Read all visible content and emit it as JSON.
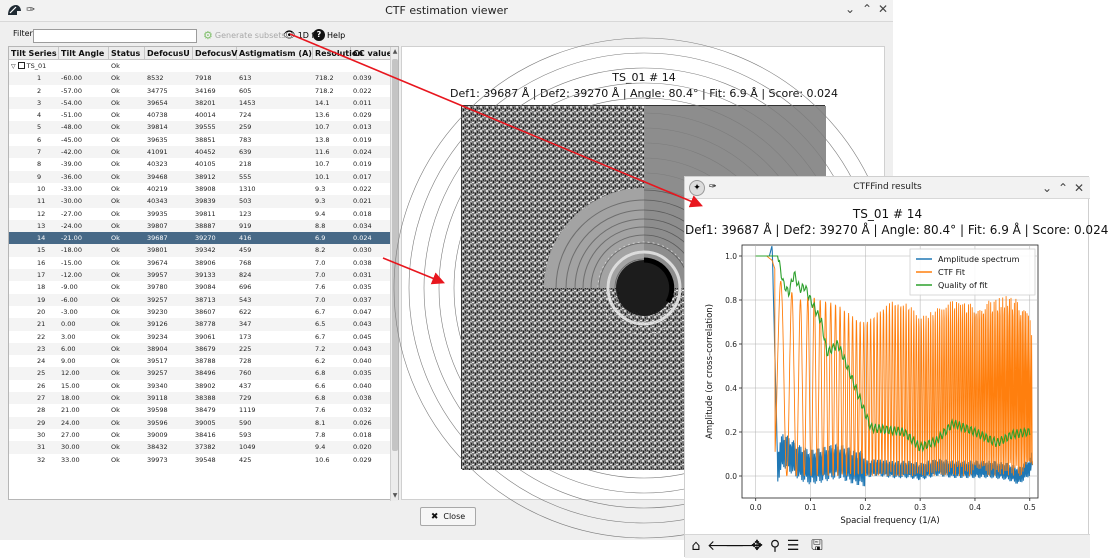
{
  "main_window": {
    "title": "CTF estimation viewer",
    "toolbar": {
      "filter_label": "Filter",
      "filter_value": "",
      "generate_subsets_label": "Generate subsets",
      "fit_1d_label": "1D fit",
      "help_label": "Help"
    },
    "table": {
      "columns": [
        "Tilt Series",
        "Tilt Angle",
        "Status",
        "DefocusU",
        "DefocusV",
        "Astigmatism (A)",
        "Resolution",
        "CC value"
      ],
      "group_label": "TS_01",
      "group_status": "Ok",
      "rows": [
        [
          "1",
          "-60.00",
          "Ok",
          "8532",
          "7918",
          "613",
          "718.2",
          "0.039"
        ],
        [
          "2",
          "-57.00",
          "Ok",
          "34775",
          "34169",
          "605",
          "718.2",
          "0.022"
        ],
        [
          "3",
          "-54.00",
          "Ok",
          "39654",
          "38201",
          "1453",
          "14.1",
          "0.011"
        ],
        [
          "4",
          "-51.00",
          "Ok",
          "40738",
          "40014",
          "724",
          "13.6",
          "0.029"
        ],
        [
          "5",
          "-48.00",
          "Ok",
          "39814",
          "39555",
          "259",
          "10.7",
          "0.013"
        ],
        [
          "6",
          "-45.00",
          "Ok",
          "39635",
          "38851",
          "783",
          "13.8",
          "0.019"
        ],
        [
          "7",
          "-42.00",
          "Ok",
          "41091",
          "40452",
          "639",
          "11.6",
          "0.024"
        ],
        [
          "8",
          "-39.00",
          "Ok",
          "40323",
          "40105",
          "218",
          "10.7",
          "0.019"
        ],
        [
          "9",
          "-36.00",
          "Ok",
          "39468",
          "38912",
          "555",
          "10.1",
          "0.017"
        ],
        [
          "10",
          "-33.00",
          "Ok",
          "40219",
          "38908",
          "1310",
          "9.3",
          "0.022"
        ],
        [
          "11",
          "-30.00",
          "Ok",
          "40343",
          "39839",
          "503",
          "9.3",
          "0.021"
        ],
        [
          "12",
          "-27.00",
          "Ok",
          "39935",
          "39811",
          "123",
          "9.4",
          "0.018"
        ],
        [
          "13",
          "-24.00",
          "Ok",
          "39807",
          "38887",
          "919",
          "8.8",
          "0.034"
        ],
        [
          "14",
          "-21.00",
          "Ok",
          "39687",
          "39270",
          "416",
          "6.9",
          "0.024"
        ],
        [
          "15",
          "-18.00",
          "Ok",
          "39801",
          "39342",
          "459",
          "8.2",
          "0.030"
        ],
        [
          "16",
          "-15.00",
          "Ok",
          "39674",
          "38906",
          "768",
          "7.0",
          "0.038"
        ],
        [
          "17",
          "-12.00",
          "Ok",
          "39957",
          "39133",
          "824",
          "7.0",
          "0.031"
        ],
        [
          "18",
          "-9.00",
          "Ok",
          "39780",
          "39084",
          "696",
          "7.6",
          "0.035"
        ],
        [
          "19",
          "-6.00",
          "Ok",
          "39257",
          "38713",
          "543",
          "7.0",
          "0.037"
        ],
        [
          "20",
          "-3.00",
          "Ok",
          "39230",
          "38607",
          "622",
          "6.7",
          "0.047"
        ],
        [
          "21",
          "0.00",
          "Ok",
          "39126",
          "38778",
          "347",
          "6.5",
          "0.043"
        ],
        [
          "22",
          "3.00",
          "Ok",
          "39234",
          "39061",
          "173",
          "6.7",
          "0.045"
        ],
        [
          "23",
          "6.00",
          "Ok",
          "38904",
          "38679",
          "225",
          "7.2",
          "0.043"
        ],
        [
          "24",
          "9.00",
          "Ok",
          "39517",
          "38788",
          "728",
          "6.2",
          "0.040"
        ],
        [
          "25",
          "12.00",
          "Ok",
          "39257",
          "38496",
          "760",
          "6.8",
          "0.035"
        ],
        [
          "26",
          "15.00",
          "Ok",
          "39340",
          "38902",
          "437",
          "6.6",
          "0.040"
        ],
        [
          "27",
          "18.00",
          "Ok",
          "39118",
          "38388",
          "729",
          "6.8",
          "0.038"
        ],
        [
          "28",
          "21.00",
          "Ok",
          "39598",
          "38479",
          "1119",
          "7.6",
          "0.032"
        ],
        [
          "29",
          "24.00",
          "Ok",
          "39596",
          "39005",
          "590",
          "8.1",
          "0.026"
        ],
        [
          "30",
          "27.00",
          "Ok",
          "39009",
          "38416",
          "593",
          "7.8",
          "0.018"
        ],
        [
          "31",
          "30.00",
          "Ok",
          "38432",
          "37382",
          "1049",
          "9.4",
          "0.020"
        ],
        [
          "32",
          "33.00",
          "Ok",
          "39973",
          "39548",
          "425",
          "10.6",
          "0.029"
        ]
      ],
      "selected_index": 13
    },
    "display": {
      "title_line1": "TS_01 # 14",
      "title_line2": "Def1: 39687 Å | Def2: 39270 Å | Angle: 80.4° | Fit: 6.9 Å | Score: 0.024"
    },
    "close_label": "Close"
  },
  "ctffind_window": {
    "title": "CTFFind results",
    "plot_title_line1": "TS_01 # 14",
    "plot_title_line2": "Def1: 39687 Å | Def2: 39270 Å | Angle: 80.4° | Fit: 6.9 Å | Score: 0.024",
    "toolbar_icons": [
      "home-icon",
      "back-icon",
      "forward-icon",
      "pan-icon",
      "zoom-icon",
      "configure-icon",
      "save-icon"
    ]
  },
  "chart_data": {
    "type": "line",
    "title": "TS_01 # 14",
    "subtitle": "Def1: 39687 Å | Def2: 39270 Å | Angle: 80.4° | Fit: 6.9 Å | Score: 0.024",
    "xlabel": "Spacial frequency (1/A)",
    "ylabel": "Amplitude (or cross-correlation)",
    "xlim": [
      -0.025,
      0.515
    ],
    "ylim": [
      -0.1,
      1.05
    ],
    "xticks": [
      "0.0",
      "0.1",
      "0.2",
      "0.3",
      "0.4",
      "0.5"
    ],
    "yticks": [
      "0.0",
      "0.2",
      "0.4",
      "0.6",
      "0.8",
      "1.0"
    ],
    "grid": true,
    "legend_position": "top-right",
    "series": [
      {
        "name": "Amplitude spectrum",
        "color": "#1f77b4",
        "x": [
          0.0,
          0.01,
          0.02,
          0.025,
          0.03,
          0.035,
          0.04,
          0.05,
          0.06,
          0.08,
          0.1,
          0.12,
          0.15,
          0.18,
          0.2,
          0.22,
          0.25,
          0.28,
          0.3,
          0.33,
          0.36,
          0.4,
          0.43,
          0.46,
          0.48,
          0.5,
          0.505
        ],
        "y": [
          1.0,
          1.0,
          1.0,
          1.0,
          1.05,
          0.55,
          0.05,
          0.12,
          0.1,
          0.06,
          0.04,
          0.05,
          0.07,
          0.04,
          0.03,
          0.04,
          0.03,
          0.03,
          0.02,
          0.04,
          0.03,
          0.03,
          0.03,
          0.02,
          0.0,
          0.04,
          0.08
        ]
      },
      {
        "name": "CTF Fit",
        "color": "#ff7f0e",
        "x": [
          0.0,
          0.01,
          0.02,
          0.03,
          0.04,
          0.06,
          0.08,
          0.1,
          0.12,
          0.15,
          0.18,
          0.2,
          0.22,
          0.25,
          0.28,
          0.3,
          0.33,
          0.36,
          0.4,
          0.43,
          0.46,
          0.48,
          0.5,
          0.505
        ],
        "y": [
          1.0,
          1.0,
          1.0,
          0.98,
          0.9,
          0.85,
          0.8,
          0.82,
          0.8,
          0.78,
          0.72,
          0.7,
          0.74,
          0.8,
          0.78,
          0.72,
          0.76,
          0.8,
          0.78,
          0.8,
          0.82,
          0.8,
          0.72,
          0.6
        ]
      },
      {
        "name": "Quality of fit",
        "color": "#2ca02c",
        "x": [
          0.0,
          0.02,
          0.04,
          0.05,
          0.06,
          0.07,
          0.08,
          0.09,
          0.1,
          0.12,
          0.13,
          0.15,
          0.17,
          0.19,
          0.21,
          0.24,
          0.27,
          0.3,
          0.33,
          0.36,
          0.4,
          0.44,
          0.47,
          0.5
        ],
        "y": [
          1.0,
          1.0,
          1.0,
          0.88,
          0.83,
          0.92,
          0.85,
          0.86,
          0.8,
          0.7,
          0.56,
          0.6,
          0.48,
          0.35,
          0.22,
          0.21,
          0.2,
          0.13,
          0.16,
          0.24,
          0.2,
          0.15,
          0.19,
          0.2
        ]
      }
    ]
  },
  "colors": {
    "selected_row": "#476987",
    "arrow": "#e8161e"
  }
}
